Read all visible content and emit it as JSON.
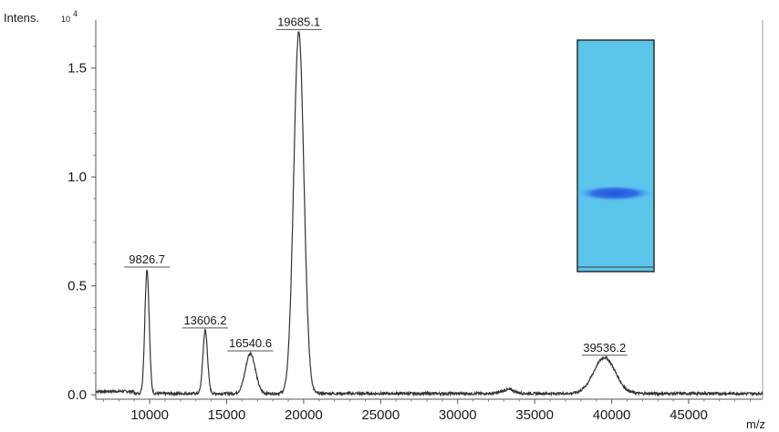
{
  "chart_data": {
    "type": "line",
    "title": "",
    "ylabel": "Intens.",
    "yscale_label": "10",
    "yscale_exponent": "4",
    "xlabel": "m/z",
    "xlim": [
      6500,
      49800
    ],
    "ylim": [
      -0.02,
      1.72
    ],
    "x_ticks": [
      10000,
      15000,
      20000,
      25000,
      30000,
      35000,
      40000,
      45000
    ],
    "x_tick_labels": [
      "10000",
      "15000",
      "20000",
      "25000",
      "30000",
      "35000",
      "40000",
      "45000"
    ],
    "y_ticks": [
      0.0,
      0.5,
      1.0,
      1.5
    ],
    "y_tick_labels": [
      "0.0",
      "0.5",
      "1.0",
      "1.5"
    ],
    "grid": false,
    "legend": "none",
    "line_color": "#333333",
    "peaks": [
      {
        "x": 9826.7,
        "y": 0.57,
        "label": "9826.7",
        "sigma": 140
      },
      {
        "x": 13606.2,
        "y": 0.29,
        "label": "13606.2",
        "sigma": 150
      },
      {
        "x": 16540.6,
        "y": 0.185,
        "label": "16540.6",
        "sigma": 320
      },
      {
        "x": 19685.1,
        "y": 1.66,
        "label": "19685.1",
        "sigma": 330
      },
      {
        "x": 39536.2,
        "y": 0.165,
        "label": "39536.2",
        "sigma": 700
      }
    ],
    "minor_bumps": [
      {
        "x": 33300,
        "y": 0.018,
        "sigma": 400
      }
    ],
    "baseline": 0.006
  },
  "inset": {
    "type": "gel-lane",
    "background": "#5cc5ec",
    "band_color": "#1c50d8",
    "band_position": 0.665
  }
}
